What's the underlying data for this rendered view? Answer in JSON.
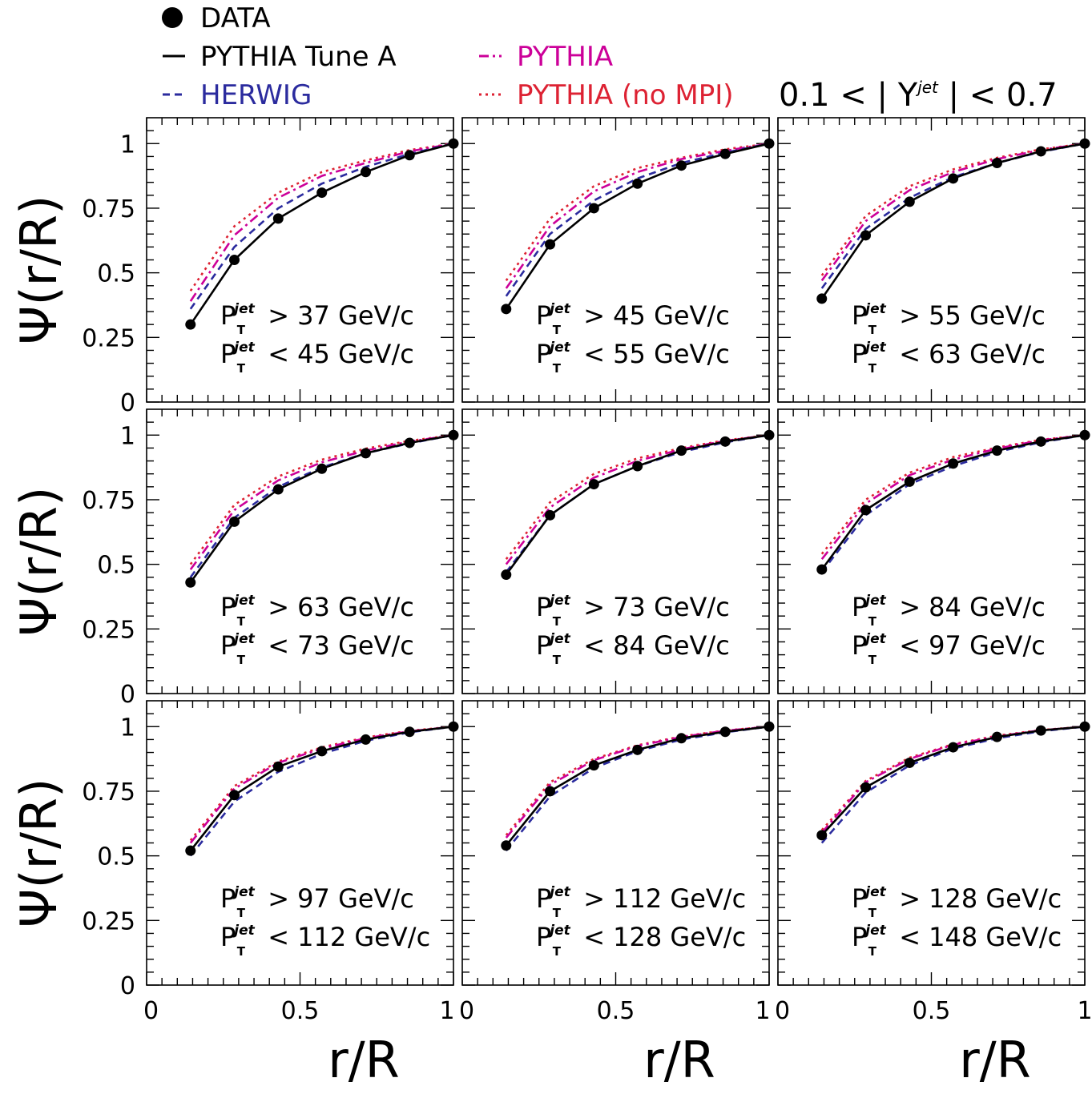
{
  "legend": {
    "entries": [
      {
        "symbol": "●",
        "label": "DATA",
        "color": "#000000"
      },
      {
        "symbol": "—",
        "label": "PYTHIA Tune A",
        "color": "#000000"
      },
      {
        "symbol": "--",
        "label": "HERWIG",
        "color": "#2b2b9e"
      },
      {
        "symbol": "-.-",
        "label": "PYTHIA",
        "color": "#cc0099"
      },
      {
        "symbol": "...",
        "label": "PYTHIA (no MPI)",
        "color": "#dd2233"
      }
    ],
    "rapidity_prefix": "0.1 < | Y",
    "rapidity_sup": "jet",
    "rapidity_suffix": " | < 0.7"
  },
  "chart_data": {
    "type": "line",
    "xlabel": "r/R",
    "ylabel": "Ψ(r/R)",
    "xlim": [
      0,
      1
    ],
    "ylim": [
      0,
      1.1
    ],
    "x_ticks": [
      "0",
      "0.5",
      "1"
    ],
    "y_ticks": [
      "0",
      "0.25",
      "0.5",
      "0.75",
      "1"
    ],
    "pt_symbol": "P",
    "pt_sub": "T",
    "pt_sup": "jet",
    "pt_unit": "GeV/c",
    "x": [
      0.143,
      0.286,
      0.429,
      0.571,
      0.714,
      0.857,
      1.0
    ],
    "panels": [
      {
        "pt_low": "37",
        "pt_high": "45",
        "series": {
          "DATA": [
            0.3,
            0.55,
            0.71,
            0.81,
            0.89,
            0.955,
            1.0
          ],
          "PYTHIA Tune A": [
            0.3,
            0.55,
            0.71,
            0.81,
            0.89,
            0.955,
            1.0
          ],
          "HERWIG": [
            0.36,
            0.6,
            0.75,
            0.845,
            0.91,
            0.96,
            1.0
          ],
          "PYTHIA": [
            0.39,
            0.645,
            0.79,
            0.875,
            0.925,
            0.97,
            1.0
          ],
          "PYTHIA (no MPI)": [
            0.43,
            0.68,
            0.81,
            0.89,
            0.935,
            0.975,
            1.0
          ]
        }
      },
      {
        "pt_low": "45",
        "pt_high": "55",
        "series": {
          "DATA": [
            0.36,
            0.61,
            0.75,
            0.845,
            0.915,
            0.96,
            1.0
          ],
          "PYTHIA Tune A": [
            0.36,
            0.61,
            0.75,
            0.845,
            0.915,
            0.96,
            1.0
          ],
          "HERWIG": [
            0.41,
            0.65,
            0.78,
            0.865,
            0.925,
            0.965,
            1.0
          ],
          "PYTHIA": [
            0.44,
            0.68,
            0.815,
            0.89,
            0.94,
            0.972,
            1.0
          ],
          "PYTHIA (no MPI)": [
            0.47,
            0.71,
            0.835,
            0.905,
            0.945,
            0.978,
            1.0
          ]
        }
      },
      {
        "pt_low": "55",
        "pt_high": "63",
        "series": {
          "DATA": [
            0.4,
            0.645,
            0.775,
            0.865,
            0.925,
            0.97,
            1.0
          ],
          "PYTHIA Tune A": [
            0.4,
            0.645,
            0.775,
            0.865,
            0.925,
            0.97,
            1.0
          ],
          "HERWIG": [
            0.44,
            0.67,
            0.79,
            0.87,
            0.925,
            0.968,
            1.0
          ],
          "PYTHIA": [
            0.47,
            0.7,
            0.82,
            0.89,
            0.94,
            0.975,
            1.0
          ],
          "PYTHIA (no MPI)": [
            0.49,
            0.72,
            0.835,
            0.9,
            0.945,
            0.978,
            1.0
          ]
        }
      },
      {
        "pt_low": "63",
        "pt_high": "73",
        "series": {
          "DATA": [
            0.43,
            0.665,
            0.79,
            0.87,
            0.93,
            0.97,
            1.0
          ],
          "PYTHIA Tune A": [
            0.43,
            0.665,
            0.79,
            0.87,
            0.93,
            0.97,
            1.0
          ],
          "HERWIG": [
            0.45,
            0.68,
            0.8,
            0.875,
            0.93,
            0.968,
            1.0
          ],
          "PYTHIA": [
            0.48,
            0.71,
            0.825,
            0.895,
            0.94,
            0.975,
            1.0
          ],
          "PYTHIA (no MPI)": [
            0.5,
            0.73,
            0.84,
            0.905,
            0.948,
            0.978,
            1.0
          ]
        }
      },
      {
        "pt_low": "73",
        "pt_high": "84",
        "series": {
          "DATA": [
            0.46,
            0.69,
            0.81,
            0.88,
            0.94,
            0.975,
            1.0
          ],
          "PYTHIA Tune A": [
            0.46,
            0.69,
            0.81,
            0.88,
            0.94,
            0.975,
            1.0
          ],
          "HERWIG": [
            0.47,
            0.69,
            0.81,
            0.88,
            0.935,
            0.972,
            1.0
          ],
          "PYTHIA": [
            0.5,
            0.72,
            0.835,
            0.9,
            0.945,
            0.978,
            1.0
          ],
          "PYTHIA (no MPI)": [
            0.52,
            0.74,
            0.85,
            0.91,
            0.95,
            0.98,
            1.0
          ]
        }
      },
      {
        "pt_low": "84",
        "pt_high": "97",
        "series": {
          "DATA": [
            0.48,
            0.71,
            0.82,
            0.89,
            0.94,
            0.975,
            1.0
          ],
          "PYTHIA Tune A": [
            0.48,
            0.71,
            0.82,
            0.89,
            0.94,
            0.975,
            1.0
          ],
          "HERWIG": [
            0.47,
            0.69,
            0.81,
            0.88,
            0.935,
            0.972,
            1.0
          ],
          "PYTHIA": [
            0.52,
            0.735,
            0.845,
            0.905,
            0.948,
            0.98,
            1.0
          ],
          "PYTHIA (no MPI)": [
            0.54,
            0.75,
            0.855,
            0.915,
            0.952,
            0.982,
            1.0
          ]
        }
      },
      {
        "pt_low": "97",
        "pt_high": "112",
        "series": {
          "DATA": [
            0.52,
            0.735,
            0.845,
            0.905,
            0.95,
            0.98,
            1.0
          ],
          "PYTHIA Tune A": [
            0.52,
            0.735,
            0.845,
            0.905,
            0.95,
            0.98,
            1.0
          ],
          "HERWIG": [
            0.5,
            0.71,
            0.825,
            0.895,
            0.945,
            0.978,
            1.0
          ],
          "PYTHIA": [
            0.55,
            0.76,
            0.86,
            0.915,
            0.955,
            0.982,
            1.0
          ],
          "PYTHIA (no MPI)": [
            0.56,
            0.77,
            0.865,
            0.92,
            0.958,
            0.984,
            1.0
          ]
        }
      },
      {
        "pt_low": "112",
        "pt_high": "128",
        "series": {
          "DATA": [
            0.54,
            0.75,
            0.85,
            0.91,
            0.955,
            0.98,
            1.0
          ],
          "PYTHIA Tune A": [
            0.54,
            0.75,
            0.85,
            0.91,
            0.955,
            0.98,
            1.0
          ],
          "HERWIG": [
            0.52,
            0.73,
            0.84,
            0.905,
            0.95,
            0.978,
            1.0
          ],
          "PYTHIA": [
            0.57,
            0.775,
            0.87,
            0.925,
            0.96,
            0.984,
            1.0
          ],
          "PYTHIA (no MPI)": [
            0.58,
            0.785,
            0.875,
            0.928,
            0.962,
            0.985,
            1.0
          ]
        }
      },
      {
        "pt_low": "128",
        "pt_high": "148",
        "series": {
          "DATA": [
            0.58,
            0.765,
            0.86,
            0.92,
            0.96,
            0.985,
            1.0
          ],
          "PYTHIA Tune A": [
            0.58,
            0.765,
            0.86,
            0.92,
            0.96,
            0.985,
            1.0
          ],
          "HERWIG": [
            0.55,
            0.745,
            0.85,
            0.915,
            0.955,
            0.982,
            1.0
          ],
          "PYTHIA": [
            0.59,
            0.785,
            0.875,
            0.93,
            0.962,
            0.986,
            1.0
          ],
          "PYTHIA (no MPI)": [
            0.6,
            0.79,
            0.88,
            0.932,
            0.965,
            0.987,
            1.0
          ]
        }
      }
    ]
  }
}
